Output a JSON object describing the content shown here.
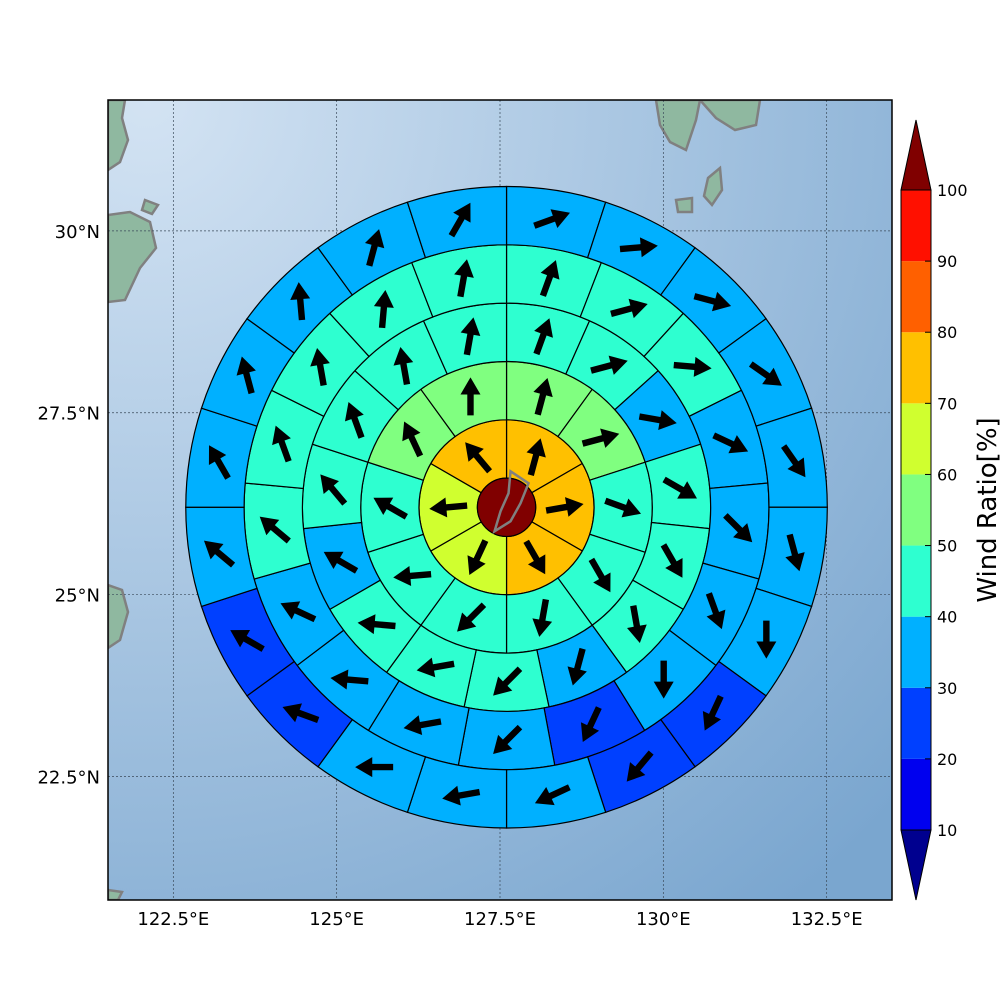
{
  "chart_data": {
    "type": "polar-sector-map",
    "title": "",
    "map": {
      "lon_range": [
        121.5,
        133.5
      ],
      "lat_range": [
        20.8,
        31.8
      ],
      "lon_ticks": [
        {
          "value": 122.5,
          "label": "122.5°E"
        },
        {
          "value": 125,
          "label": "125°E"
        },
        {
          "value": 127.5,
          "label": "127.5°E"
        },
        {
          "value": 130,
          "label": "130°E"
        },
        {
          "value": 132.5,
          "label": "132.5°E"
        }
      ],
      "lat_ticks": [
        {
          "value": 22.5,
          "label": "22.5°N"
        },
        {
          "value": 25,
          "label": "25°N"
        },
        {
          "value": 27.5,
          "label": "27.5°N"
        },
        {
          "value": 30,
          "label": "30°N"
        }
      ],
      "grid": true,
      "center_lon": 127.6,
      "center_lat": 26.2,
      "ocean_color_light": "#d3e3f3",
      "ocean_color_dark": "#7aa6cf",
      "coast_color": "#808080",
      "land_color": "#8fb8a0"
    },
    "colorbar": {
      "label": "Wind Ratio[%]",
      "ticks": [
        {
          "value": 10,
          "label": "10"
        },
        {
          "value": 20,
          "label": "20"
        },
        {
          "value": 30,
          "label": "30"
        },
        {
          "value": 40,
          "label": "40"
        },
        {
          "value": 50,
          "label": "50"
        },
        {
          "value": 60,
          "label": "60"
        },
        {
          "value": 70,
          "label": "70"
        },
        {
          "value": 80,
          "label": "80"
        },
        {
          "value": 90,
          "label": "90"
        },
        {
          "value": 100,
          "label": "100"
        }
      ],
      "extend": "both",
      "below_color": "#00008f",
      "above_color": "#800000",
      "levels": [
        {
          "from": 10,
          "to": 20,
          "color": "#0000ef"
        },
        {
          "from": 20,
          "to": 30,
          "color": "#0040ff"
        },
        {
          "from": 30,
          "to": 40,
          "color": "#00b0ff"
        },
        {
          "from": 40,
          "to": 50,
          "color": "#2effd0"
        },
        {
          "from": 50,
          "to": 60,
          "color": "#80ff80"
        },
        {
          "from": 60,
          "to": 70,
          "color": "#d0ff2f"
        },
        {
          "from": 70,
          "to": 80,
          "color": "#ffc000"
        },
        {
          "from": 80,
          "to": 90,
          "color": "#ff6000"
        },
        {
          "from": 90,
          "to": 100,
          "color": "#ff1000"
        }
      ]
    },
    "center": {
      "value": 100,
      "radius_km": 50
    },
    "rings": [
      {
        "inner_km": 50,
        "outer_km": 150,
        "start_deg": 0,
        "sectors": [
          {
            "value": 75,
            "wind_dir_deg": 15
          },
          {
            "value": 75,
            "wind_dir_deg": 80
          },
          {
            "value": 75,
            "wind_dir_deg": 150
          },
          {
            "value": 65,
            "wind_dir_deg": 205
          },
          {
            "value": 65,
            "wind_dir_deg": 265
          },
          {
            "value": 75,
            "wind_dir_deg": 320
          }
        ]
      },
      {
        "inner_km": 150,
        "outer_km": 250,
        "start_deg": 0,
        "sectors": [
          {
            "value": 55,
            "wind_dir_deg": 15
          },
          {
            "value": 55,
            "wind_dir_deg": 75
          },
          {
            "value": 45,
            "wind_dir_deg": 110
          },
          {
            "value": 45,
            "wind_dir_deg": 150
          },
          {
            "value": 45,
            "wind_dir_deg": 190
          },
          {
            "value": 45,
            "wind_dir_deg": 225
          },
          {
            "value": 45,
            "wind_dir_deg": 265
          },
          {
            "value": 45,
            "wind_dir_deg": 300
          },
          {
            "value": 55,
            "wind_dir_deg": 335
          },
          {
            "value": 55,
            "wind_dir_deg": 0
          }
        ]
      },
      {
        "inner_km": 250,
        "outer_km": 350,
        "start_deg": 0,
        "sectors": [
          {
            "value": 45,
            "wind_dir_deg": 20
          },
          {
            "value": 45,
            "wind_dir_deg": 75
          },
          {
            "value": 35,
            "wind_dir_deg": 100
          },
          {
            "value": 45,
            "wind_dir_deg": 120
          },
          {
            "value": 45,
            "wind_dir_deg": 150
          },
          {
            "value": 45,
            "wind_dir_deg": 170
          },
          {
            "value": 35,
            "wind_dir_deg": 195
          },
          {
            "value": 45,
            "wind_dir_deg": 225
          },
          {
            "value": 45,
            "wind_dir_deg": 260
          },
          {
            "value": 45,
            "wind_dir_deg": 275
          },
          {
            "value": 35,
            "wind_dir_deg": 300
          },
          {
            "value": 45,
            "wind_dir_deg": 320
          },
          {
            "value": 45,
            "wind_dir_deg": 340
          },
          {
            "value": 45,
            "wind_dir_deg": 350
          },
          {
            "value": 45,
            "wind_dir_deg": 10
          }
        ]
      },
      {
        "inner_km": 350,
        "outer_km": 450,
        "start_deg": 0,
        "sectors": [
          {
            "value": 45,
            "wind_dir_deg": 20
          },
          {
            "value": 45,
            "wind_dir_deg": 75
          },
          {
            "value": 45,
            "wind_dir_deg": 95
          },
          {
            "value": 35,
            "wind_dir_deg": 115
          },
          {
            "value": 35,
            "wind_dir_deg": 135
          },
          {
            "value": 35,
            "wind_dir_deg": 160
          },
          {
            "value": 35,
            "wind_dir_deg": 180
          },
          {
            "value": 25,
            "wind_dir_deg": 205
          },
          {
            "value": 35,
            "wind_dir_deg": 225
          },
          {
            "value": 35,
            "wind_dir_deg": 260
          },
          {
            "value": 35,
            "wind_dir_deg": 275
          },
          {
            "value": 35,
            "wind_dir_deg": 295
          },
          {
            "value": 45,
            "wind_dir_deg": 310
          },
          {
            "value": 45,
            "wind_dir_deg": 340
          },
          {
            "value": 45,
            "wind_dir_deg": 350
          },
          {
            "value": 45,
            "wind_dir_deg": 5
          },
          {
            "value": 45,
            "wind_dir_deg": 10
          }
        ]
      },
      {
        "inner_km": 450,
        "outer_km": 550,
        "start_deg": 0,
        "sectors": [
          {
            "value": 35,
            "wind_dir_deg": 70
          },
          {
            "value": 35,
            "wind_dir_deg": 85
          },
          {
            "value": 35,
            "wind_dir_deg": 105
          },
          {
            "value": 35,
            "wind_dir_deg": 125
          },
          {
            "value": 35,
            "wind_dir_deg": 145
          },
          {
            "value": 35,
            "wind_dir_deg": 165
          },
          {
            "value": 35,
            "wind_dir_deg": 180
          },
          {
            "value": 25,
            "wind_dir_deg": 205
          },
          {
            "value": 25,
            "wind_dir_deg": 220
          },
          {
            "value": 35,
            "wind_dir_deg": 245
          },
          {
            "value": 35,
            "wind_dir_deg": 260
          },
          {
            "value": 35,
            "wind_dir_deg": 270
          },
          {
            "value": 25,
            "wind_dir_deg": 290
          },
          {
            "value": 25,
            "wind_dir_deg": 300
          },
          {
            "value": 35,
            "wind_dir_deg": 310
          },
          {
            "value": 35,
            "wind_dir_deg": 330
          },
          {
            "value": 35,
            "wind_dir_deg": 345
          },
          {
            "value": 35,
            "wind_dir_deg": 355
          },
          {
            "value": 35,
            "wind_dir_deg": 15
          },
          {
            "value": 35,
            "wind_dir_deg": 30
          }
        ]
      }
    ]
  }
}
